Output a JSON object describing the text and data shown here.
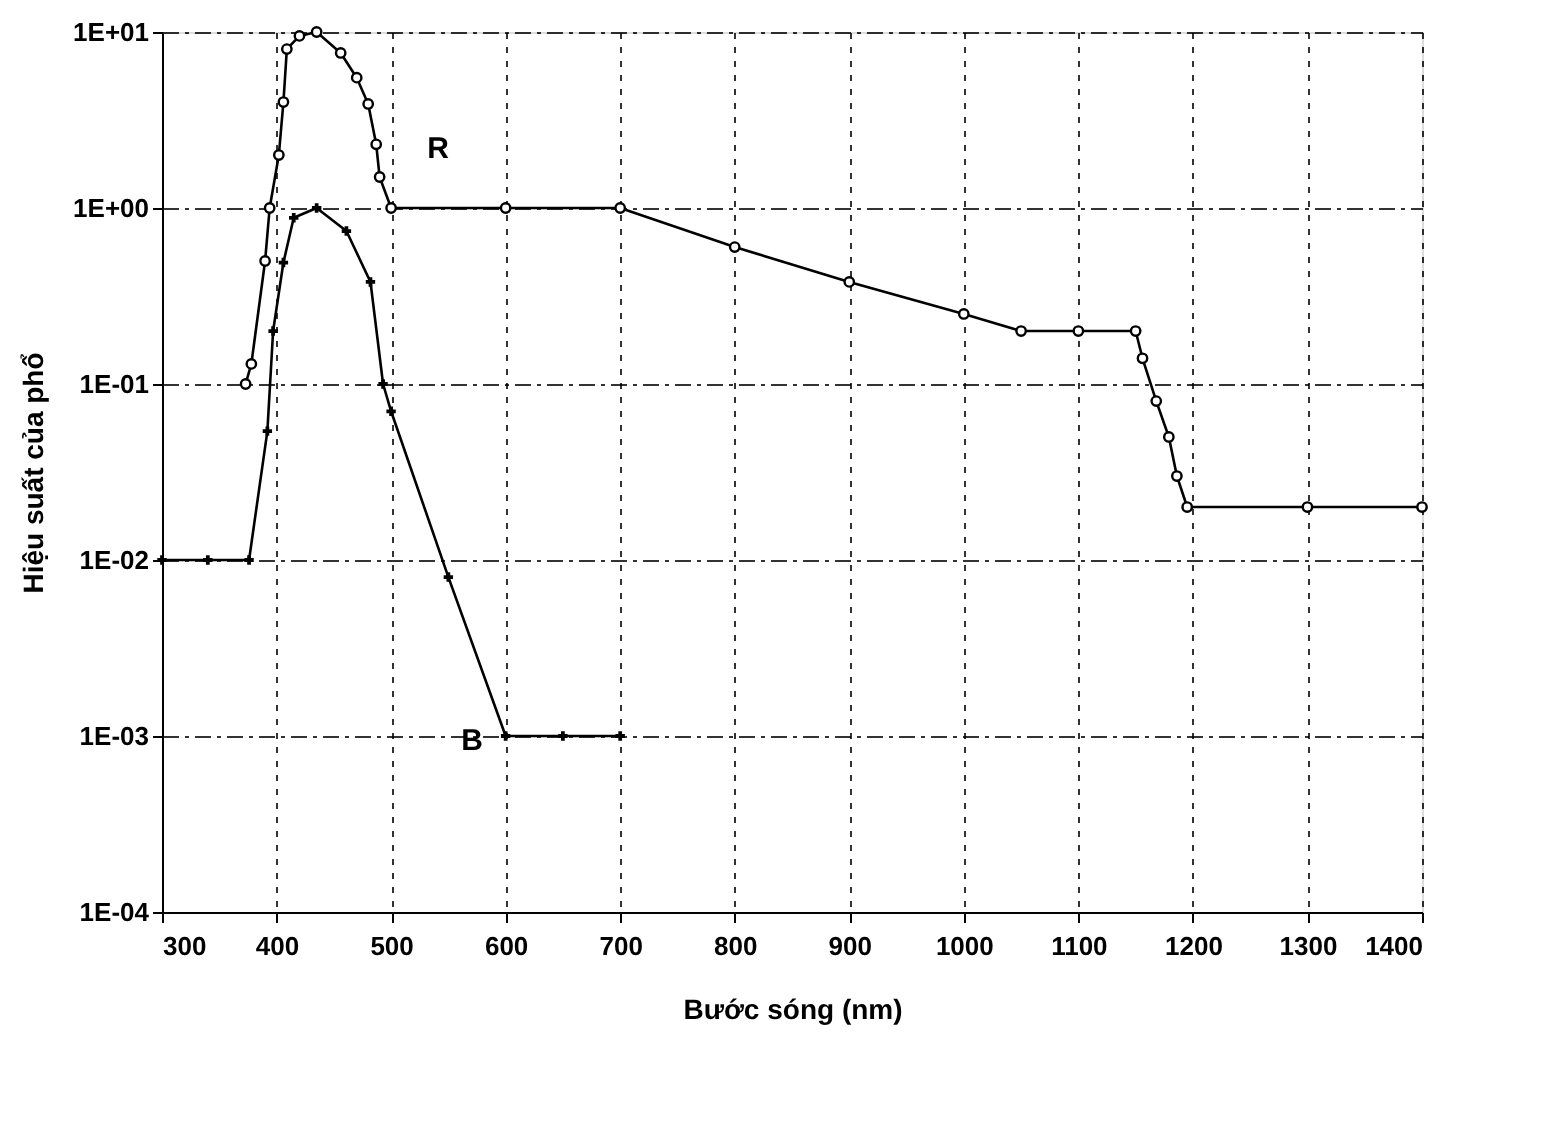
{
  "chart_data": {
    "type": "line",
    "xlabel": "Bước sóng (nm)",
    "ylabel": "Hiệu suất của phổ",
    "log": "y",
    "grid": true,
    "line_style": "solid",
    "xlim": [
      300,
      1400
    ],
    "xticks": [
      300,
      400,
      500,
      600,
      700,
      800,
      900,
      1000,
      1100,
      1200,
      1300,
      1400
    ],
    "ylim": [
      0.0001,
      10
    ],
    "yticks": [
      {
        "value": 0.0001,
        "label": "1E-04"
      },
      {
        "value": 0.001,
        "label": "1E-03"
      },
      {
        "value": 0.01,
        "label": "1E-02"
      },
      {
        "value": 0.1,
        "label": "1E-01"
      },
      {
        "value": 1,
        "label": "1E+00"
      },
      {
        "value": 10,
        "label": "1E+01"
      }
    ],
    "series": [
      {
        "color": "#000000",
        "marker": "circle",
        "x": [
          373,
          378,
          390,
          394,
          402,
          406,
          409,
          420,
          435,
          456,
          470,
          480,
          487,
          490,
          500,
          600,
          700,
          800,
          900,
          1000,
          1050,
          1100,
          1150,
          1156,
          1168,
          1179,
          1186,
          1195,
          1300,
          1400
        ],
        "values": [
          0.1,
          0.13,
          0.5,
          1,
          2,
          4,
          8,
          9.5,
          10,
          7.6,
          5.5,
          3.9,
          2.3,
          1.5,
          1,
          1,
          1,
          0.6,
          0.38,
          0.25,
          0.2,
          0.2,
          0.2,
          0.14,
          0.08,
          0.05,
          0.03,
          0.02,
          0.02,
          0.02
        ]
      },
      {
        "color": "#000000",
        "marker": "cross",
        "x": [
          300,
          340,
          376,
          392,
          397,
          406,
          415,
          435,
          461,
          482,
          493,
          500,
          550,
          600,
          650,
          700
        ],
        "values": [
          0.01,
          0.01,
          0.01,
          0.054,
          0.2,
          0.49,
          0.88,
          1,
          0.74,
          0.38,
          0.1,
          0.07,
          0.008,
          0.001,
          0.001,
          0.001
        ]
      }
    ],
    "annotations": [
      "R",
      "B"
    ]
  }
}
